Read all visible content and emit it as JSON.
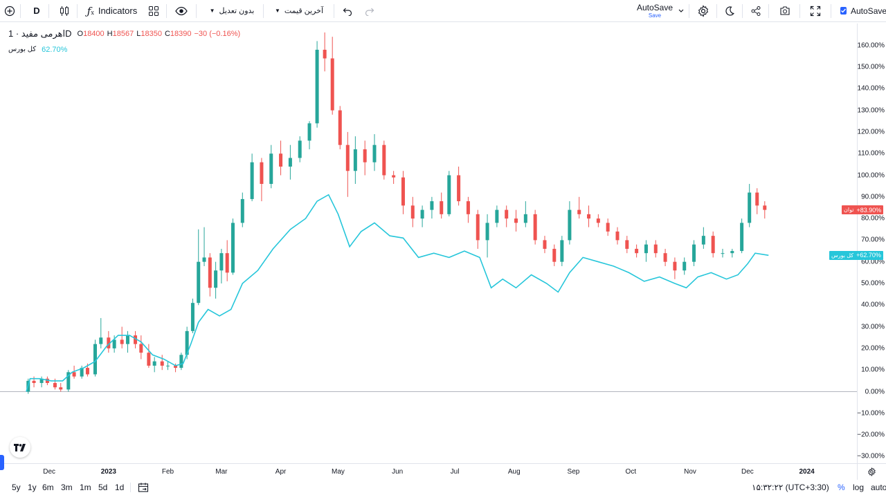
{
  "toolbar": {
    "interval": "D",
    "indicators_label": "Indicators",
    "adjust_label": "بدون تعدیل",
    "price_type_label": "آخرین قیمت",
    "autosave_label": "AutoSave",
    "autosave_sub": "Save",
    "autosave_check_label": "AutoSave"
  },
  "legend": {
    "symbol": "اهرمی مفید · 1D",
    "o_key": "O",
    "o_val": "18400",
    "h_key": "H",
    "h_val": "18567",
    "l_key": "L",
    "l_val": "18350",
    "c_key": "C",
    "c_val": "18390",
    "change": "−30 (−0.16%)",
    "compare_name": "کل بورس",
    "compare_value": "62.70%"
  },
  "badges": {
    "main_name": "توان",
    "main_value": "+83.90%",
    "compare_name": "کل بورس",
    "compare_value": "+62.70%"
  },
  "price_scale": [
    "160.00%",
    "150.00%",
    "140.00%",
    "130.00%",
    "120.00%",
    "110.00%",
    "100.00%",
    "90.00%",
    "80.00%",
    "70.00%",
    "60.00%",
    "50.00%",
    "40.00%",
    "30.00%",
    "20.00%",
    "10.00%",
    "0.00%",
    "−10.00%",
    "−20.00%",
    "−30.00%"
  ],
  "time_scale": [
    "Dec",
    "2023",
    "Feb",
    "Mar",
    "Apr",
    "May",
    "Jun",
    "Jul",
    "Aug",
    "Sep",
    "Oct",
    "Nov",
    "Dec",
    "2024"
  ],
  "bottom": {
    "ranges": [
      "5y",
      "1y",
      "6m",
      "3m",
      "1m",
      "5d",
      "1d"
    ],
    "clock": "۱۵:۳۲:۲۲ (UTC+3:30)",
    "percent": "%",
    "log": "log",
    "auto": "auto"
  },
  "colors": {
    "up": "#26a69a",
    "down": "#ef5350",
    "compare_line": "#26c6da",
    "accent": "#2962ff"
  },
  "chart_data": {
    "type": "candlestick+line",
    "y_unit": "percent change",
    "ylim": [
      -33,
      172
    ],
    "x_range": [
      "2022-11-19",
      "2024-01-12"
    ],
    "candles": [
      [
        "2022-11-20",
        0,
        6,
        -1,
        5
      ],
      [
        "2022-11-23",
        5,
        7,
        2,
        4
      ],
      [
        "2022-11-27",
        4,
        7,
        2,
        6
      ],
      [
        "2022-11-30",
        6,
        7,
        3,
        4
      ],
      [
        "2022-12-04",
        4,
        6,
        1,
        2
      ],
      [
        "2022-12-07",
        2,
        4,
        0,
        1
      ],
      [
        "2022-12-11",
        1,
        10,
        0,
        9
      ],
      [
        "2022-12-14",
        9,
        12,
        6,
        7
      ],
      [
        "2022-12-18",
        7,
        12,
        6,
        11
      ],
      [
        "2022-12-21",
        11,
        13,
        7,
        8
      ],
      [
        "2022-12-25",
        8,
        24,
        7,
        22
      ],
      [
        "2022-12-28",
        22,
        34,
        20,
        25
      ],
      [
        "2023-01-01",
        25,
        28,
        18,
        20
      ],
      [
        "2023-01-04",
        20,
        26,
        18,
        24
      ],
      [
        "2023-01-08",
        24,
        30,
        20,
        22
      ],
      [
        "2023-01-11",
        22,
        28,
        18,
        26
      ],
      [
        "2023-01-15",
        26,
        28,
        20,
        22
      ],
      [
        "2023-01-18",
        22,
        26,
        15,
        18
      ],
      [
        "2023-01-22",
        18,
        22,
        11,
        12
      ],
      [
        "2023-01-25",
        12,
        16,
        9,
        14
      ],
      [
        "2023-01-29",
        14,
        17,
        10,
        12
      ],
      [
        "2023-02-01",
        12,
        14,
        10,
        12
      ],
      [
        "2023-02-05",
        12,
        13,
        9,
        11
      ],
      [
        "2023-02-08",
        11,
        18,
        10,
        17
      ],
      [
        "2023-02-11",
        17,
        30,
        15,
        28
      ],
      [
        "2023-02-14",
        28,
        43,
        27,
        41
      ],
      [
        "2023-02-17",
        41,
        75,
        40,
        60
      ],
      [
        "2023-02-20",
        60,
        76,
        58,
        62
      ],
      [
        "2023-02-23",
        62,
        64,
        44,
        48
      ],
      [
        "2023-02-26",
        48,
        60,
        43,
        56
      ],
      [
        "2023-03-01",
        56,
        66,
        50,
        64
      ],
      [
        "2023-03-04",
        64,
        70,
        51,
        55
      ],
      [
        "2023-03-07",
        55,
        80,
        54,
        78
      ],
      [
        "2023-03-12",
        78,
        92,
        76,
        89
      ],
      [
        "2023-03-17",
        89,
        110,
        88,
        106
      ],
      [
        "2023-03-22",
        106,
        108,
        88,
        96
      ],
      [
        "2023-03-27",
        96,
        114,
        94,
        110
      ],
      [
        "2023-04-01",
        110,
        116,
        100,
        104
      ],
      [
        "2023-04-06",
        104,
        114,
        98,
        108
      ],
      [
        "2023-04-11",
        108,
        118,
        106,
        116
      ],
      [
        "2023-04-16",
        116,
        125,
        112,
        124
      ],
      [
        "2023-04-20",
        124,
        162,
        122,
        158
      ],
      [
        "2023-04-24",
        158,
        166,
        148,
        154
      ],
      [
        "2023-04-28",
        154,
        164,
        128,
        130
      ],
      [
        "2023-05-02",
        130,
        132,
        112,
        114
      ],
      [
        "2023-05-06",
        114,
        120,
        90,
        102
      ],
      [
        "2023-05-10",
        102,
        118,
        96,
        112
      ],
      [
        "2023-05-15",
        112,
        116,
        100,
        106
      ],
      [
        "2023-05-20",
        106,
        119,
        102,
        114
      ],
      [
        "2023-05-25",
        114,
        116,
        98,
        100
      ],
      [
        "2023-05-30",
        100,
        102,
        96,
        99
      ],
      [
        "2023-06-04",
        99,
        102,
        82,
        86
      ],
      [
        "2023-06-09",
        86,
        90,
        76,
        80
      ],
      [
        "2023-06-14",
        80,
        86,
        76,
        84
      ],
      [
        "2023-06-19",
        84,
        90,
        80,
        88
      ],
      [
        "2023-06-24",
        88,
        92,
        80,
        82
      ],
      [
        "2023-06-28",
        82,
        102,
        81,
        100
      ],
      [
        "2023-07-03",
        100,
        104,
        86,
        88
      ],
      [
        "2023-07-08",
        88,
        90,
        78,
        82
      ],
      [
        "2023-07-13",
        82,
        84,
        66,
        70
      ],
      [
        "2023-07-18",
        70,
        82,
        62,
        78
      ],
      [
        "2023-07-23",
        78,
        86,
        76,
        84
      ],
      [
        "2023-07-28",
        84,
        86,
        76,
        80
      ],
      [
        "2023-08-02",
        80,
        84,
        74,
        78
      ],
      [
        "2023-08-07",
        78,
        88,
        76,
        82
      ],
      [
        "2023-08-12",
        82,
        84,
        68,
        70
      ],
      [
        "2023-08-17",
        70,
        72,
        64,
        66
      ],
      [
        "2023-08-22",
        66,
        68,
        58,
        60
      ],
      [
        "2023-08-26",
        60,
        72,
        58,
        70
      ],
      [
        "2023-08-30",
        70,
        88,
        68,
        84
      ],
      [
        "2023-09-04",
        84,
        90,
        80,
        82
      ],
      [
        "2023-09-09",
        82,
        86,
        76,
        80
      ],
      [
        "2023-09-14",
        80,
        82,
        76,
        78
      ],
      [
        "2023-09-19",
        78,
        80,
        72,
        74
      ],
      [
        "2023-09-24",
        74,
        76,
        68,
        70
      ],
      [
        "2023-09-29",
        70,
        72,
        64,
        66
      ],
      [
        "2023-10-04",
        66,
        68,
        62,
        64
      ],
      [
        "2023-10-09",
        64,
        70,
        60,
        68
      ],
      [
        "2023-10-14",
        68,
        70,
        62,
        64
      ],
      [
        "2023-10-19",
        64,
        66,
        58,
        60
      ],
      [
        "2023-10-24",
        60,
        62,
        52,
        56
      ],
      [
        "2023-10-29",
        56,
        62,
        54,
        60
      ],
      [
        "2023-11-03",
        60,
        70,
        58,
        68
      ],
      [
        "2023-11-08",
        68,
        76,
        66,
        72
      ],
      [
        "2023-11-13",
        72,
        74,
        62,
        64
      ],
      [
        "2023-11-18",
        64,
        66,
        62,
        64
      ],
      [
        "2023-11-23",
        64,
        66,
        62,
        65
      ],
      [
        "2023-11-28",
        65,
        80,
        64,
        78
      ],
      [
        "2023-12-02",
        78,
        96,
        76,
        92
      ],
      [
        "2023-12-06",
        92,
        94,
        82,
        86
      ],
      [
        "2023-12-10",
        86,
        88,
        80,
        84
      ]
    ],
    "compare_series": {
      "name": "کل بورس",
      "points": [
        [
          "2022-11-19",
          0
        ],
        [
          "2022-11-21",
          6
        ],
        [
          "2022-11-26",
          6
        ],
        [
          "2022-12-02",
          5
        ],
        [
          "2022-12-08",
          5
        ],
        [
          "2022-12-13",
          9
        ],
        [
          "2022-12-19",
          11
        ],
        [
          "2022-12-25",
          14
        ],
        [
          "2022-12-31",
          21
        ],
        [
          "2023-01-06",
          26
        ],
        [
          "2023-01-12",
          26
        ],
        [
          "2023-01-18",
          23
        ],
        [
          "2023-01-24",
          17
        ],
        [
          "2023-01-30",
          15
        ],
        [
          "2023-02-05",
          12
        ],
        [
          "2023-02-09",
          13
        ],
        [
          "2023-02-13",
          22
        ],
        [
          "2023-02-17",
          32
        ],
        [
          "2023-02-22",
          38
        ],
        [
          "2023-02-28",
          35
        ],
        [
          "2023-03-06",
          38
        ],
        [
          "2023-03-12",
          50
        ],
        [
          "2023-03-20",
          56
        ],
        [
          "2023-03-28",
          66
        ],
        [
          "2023-04-06",
          75
        ],
        [
          "2023-04-14",
          80
        ],
        [
          "2023-04-20",
          88
        ],
        [
          "2023-04-26",
          91
        ],
        [
          "2023-05-01",
          82
        ],
        [
          "2023-05-07",
          67
        ],
        [
          "2023-05-13",
          74
        ],
        [
          "2023-05-20",
          78
        ],
        [
          "2023-05-28",
          72
        ],
        [
          "2023-06-04",
          71
        ],
        [
          "2023-06-12",
          62
        ],
        [
          "2023-06-20",
          64
        ],
        [
          "2023-06-28",
          62
        ],
        [
          "2023-07-06",
          65
        ],
        [
          "2023-07-14",
          62
        ],
        [
          "2023-07-20",
          48
        ],
        [
          "2023-07-26",
          52
        ],
        [
          "2023-08-02",
          48
        ],
        [
          "2023-08-10",
          54
        ],
        [
          "2023-08-18",
          50
        ],
        [
          "2023-08-24",
          46
        ],
        [
          "2023-08-30",
          55
        ],
        [
          "2023-09-06",
          62
        ],
        [
          "2023-09-14",
          60
        ],
        [
          "2023-09-22",
          58
        ],
        [
          "2023-09-30",
          55
        ],
        [
          "2023-10-08",
          51
        ],
        [
          "2023-10-16",
          53
        ],
        [
          "2023-10-24",
          50
        ],
        [
          "2023-10-30",
          48
        ],
        [
          "2023-11-05",
          53
        ],
        [
          "2023-11-12",
          55
        ],
        [
          "2023-11-20",
          52
        ],
        [
          "2023-11-26",
          54
        ],
        [
          "2023-12-01",
          59
        ],
        [
          "2023-12-05",
          64
        ],
        [
          "2023-12-12",
          63
        ]
      ]
    },
    "grid": false,
    "xlabel": "",
    "ylabel": ""
  }
}
